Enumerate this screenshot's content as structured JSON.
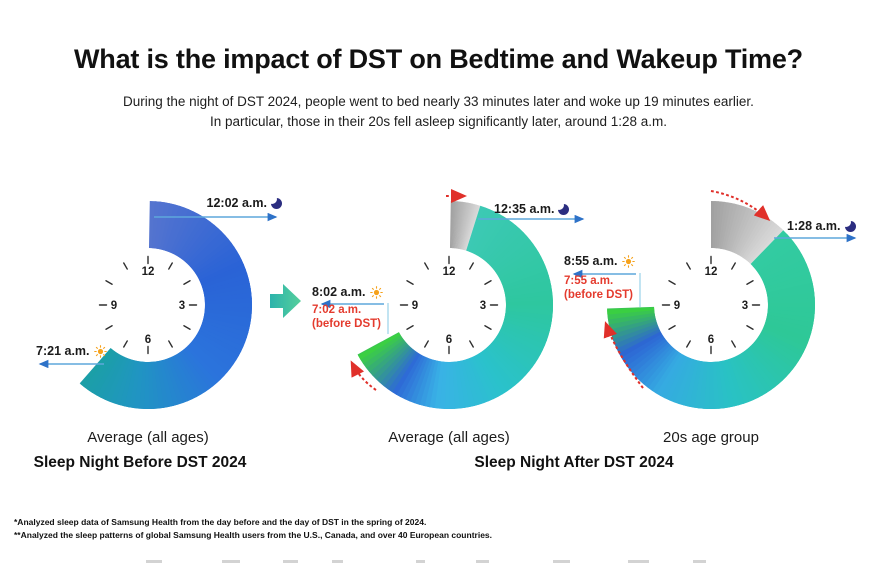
{
  "title": "What is the impact of DST on Bedtime and Wakeup Time?",
  "subtitle_line1": "During the night of DST 2024, people went to bed nearly 33 minutes later and woke up 19 minutes earlier.",
  "subtitle_line2": "In particular, those in their 20s fell asleep significantly later, around 1:28 a.m.",
  "clock_numerals": [
    "12",
    "3",
    "6",
    "9"
  ],
  "section_titles": {
    "before": "Sleep Night Before DST 2024",
    "after": "Sleep Night After DST 2024"
  },
  "chart_data": [
    {
      "type": "donut-clock",
      "group": "Average (all ages)",
      "section": "Sleep Night Before DST 2024",
      "bedtime": "12:02 a.m.",
      "wake_time": "7:21 a.m.",
      "bedtime_hour": 0.033,
      "wake_hour": 7.35,
      "gray_segment": null,
      "before_dst_wake": null,
      "before_dst_note": null,
      "arc_color_stops": [
        [
          0,
          "#5574cf"
        ],
        [
          0.3,
          "#2a63d6"
        ],
        [
          0.62,
          "#2b74dc"
        ],
        [
          0.85,
          "#2095c2"
        ],
        [
          1,
          "#1b9fa6"
        ]
      ]
    },
    {
      "type": "donut-clock",
      "group": "Average (all ages)",
      "section": "Sleep Night After DST 2024",
      "bedtime": "12:35 a.m.",
      "wake_time": "8:02 a.m.",
      "bedtime_hour": 0.583,
      "wake_hour": 8.033,
      "gray_segment": {
        "start_hour": 0.033,
        "end_hour": 0.583
      },
      "before_dst_wake": "7:02 a.m.",
      "before_dst_note": "(before DST)",
      "arc_color_stops": [
        [
          0,
          "#3cc9b4"
        ],
        [
          0.32,
          "#2ec79f"
        ],
        [
          0.58,
          "#2ac2cb"
        ],
        [
          0.76,
          "#39b2e6"
        ],
        [
          0.87,
          "#2e6ad6"
        ],
        [
          1,
          "#3cd43c"
        ]
      ]
    },
    {
      "type": "donut-clock",
      "group": "20s age group",
      "section": "Sleep Night After DST 2024",
      "bedtime": "1:28 a.m.",
      "wake_time": "8:55 a.m.",
      "bedtime_hour": 1.467,
      "wake_hour": 8.917,
      "gray_segment": {
        "start_hour": 0.0,
        "end_hour": 1.467
      },
      "before_dst_wake": "7:55 a.m.",
      "before_dst_note": "(before DST)",
      "arc_color_stops": [
        [
          0,
          "#33cba2"
        ],
        [
          0.3,
          "#2ec897"
        ],
        [
          0.55,
          "#29c2c4"
        ],
        [
          0.75,
          "#35aae2"
        ],
        [
          0.88,
          "#2d66d4"
        ],
        [
          1,
          "#3bd53a"
        ]
      ]
    }
  ],
  "colors": {
    "gray_start": "#a0a0a0",
    "gray_end": "#dadada",
    "blue_arrow": "#5ea7dc",
    "blue_arrow_head": "#2e72c8",
    "bracket": "#a9d9ec",
    "red": "#e0302a",
    "moon": "#2b2d80",
    "sun": "#f6a21c",
    "tick": "#2f2f2f",
    "numeral": "#1d1d1d",
    "transition_start": "#2cb3ab",
    "transition_end": "#55cf9c"
  },
  "footnotes": [
    "*Analyzed sleep data of Samsung Health from the day before and the day of DST in the spring of 2024.",
    "**Analyzed the sleep patterns of global Samsung Health users from the U.S., Canada, and over 40 European countries."
  ]
}
